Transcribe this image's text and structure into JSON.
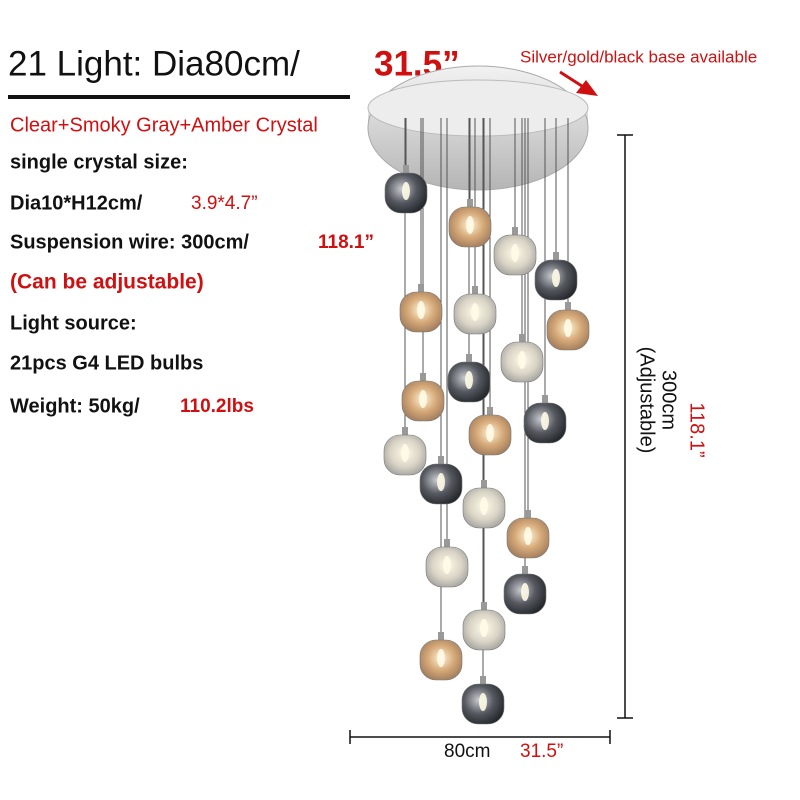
{
  "header": {
    "title": "21 Light: Dia80cm/",
    "title_imperial": "31.5”",
    "base_note": "Silver/gold/black base available"
  },
  "specs": {
    "crystal": "Clear+Smoky Gray+Amber Crystal",
    "size_label": "single crystal size:",
    "size_metric": "Dia10*H12cm/",
    "size_imperial": "3.9*4.7”",
    "wire_metric": "Suspension wire: 300cm/",
    "wire_imperial": "118.1”",
    "adjustable": "(Can be adjustable)",
    "source_label": "Light source:",
    "bulbs": "21pcs G4 LED bulbs",
    "weight_metric": "Weight: 50kg/",
    "weight_imperial": "110.2lbs"
  },
  "dimensions": {
    "height_imperial": "118.1”",
    "height_metric": "300cm",
    "height_note": "(Adjustable)",
    "width_metric": "80cm",
    "width_imperial": "31.5”"
  }
}
